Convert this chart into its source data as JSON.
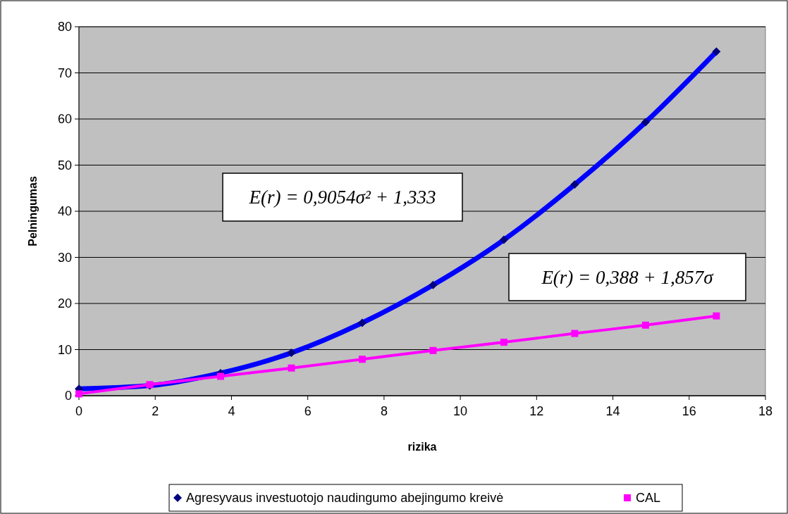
{
  "chart_data": {
    "type": "line",
    "xlabel": "rizika",
    "ylabel": "Pelningumas",
    "x": [
      0,
      1.857,
      3.714,
      5.571,
      7.428,
      9.285,
      11.142,
      12.999,
      14.856,
      16.713
    ],
    "series": [
      {
        "name": "Agresyvaus investuotojo naudingumo abejingumo kreivė",
        "color": "#0000ff",
        "marker": "diamond",
        "values": [
          1.5,
          2.2,
          4.9,
          9.3,
          15.8,
          24,
          33.8,
          45.8,
          59.3,
          74.6
        ]
      },
      {
        "name": "CAL",
        "color": "#ff00ff",
        "marker": "square",
        "values": [
          0.4,
          2.4,
          4.2,
          6.0,
          7.9,
          9.8,
          11.6,
          13.5,
          15.3,
          17.3
        ]
      }
    ],
    "annotations": [
      "E(r) = 0,9054σ² + 1,333",
      "E(r) = 0,388 + 1,857σ"
    ],
    "xlim": [
      0,
      18
    ],
    "xticks": [
      0,
      2,
      4,
      6,
      8,
      10,
      12,
      14,
      16,
      18
    ],
    "ylim": [
      0,
      80
    ],
    "yticks": [
      0,
      10,
      20,
      30,
      40,
      50,
      60,
      70,
      80
    ],
    "grid": "y",
    "legend": "bottom",
    "line_style": "solid"
  }
}
